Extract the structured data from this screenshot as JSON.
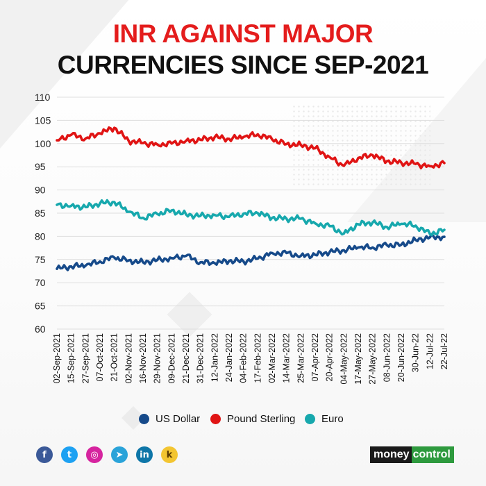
{
  "title_line1": "INR AGAINST MAJOR",
  "title_line2": "CURRENCIES SINCE SEP-2021",
  "colors": {
    "title_accent": "#e41c1c",
    "us_dollar": "#164a8a",
    "pound_sterling": "#e01414",
    "euro": "#17a8ad"
  },
  "chart_data": {
    "type": "line",
    "title": "INR AGAINST MAJOR CURRENCIES SINCE SEP-2021",
    "xlabel": "",
    "ylabel": "",
    "ylim": [
      60,
      110
    ],
    "yticks": [
      110,
      105,
      100,
      95,
      90,
      85,
      80,
      75,
      70,
      65,
      60
    ],
    "grid": true,
    "legend_position": "bottom",
    "x_tick_labels": [
      "02-Sep-2021",
      "15-Sep-2021",
      "27-Sep-2021",
      "07-Oct-2021",
      "21-Oct-2021",
      "02-Nov-2021",
      "16-Nov-2021",
      "29-Nov-2021",
      "09-Dec-2021",
      "21-Dec-2021",
      "31-Dec-2021",
      "12-Jan-2022",
      "24-Jan-2022",
      "04-Feb-2022",
      "17-Feb-2022",
      "02-Mar-2022",
      "14-Mar-2022",
      "25-Mar-2022",
      "07-Apr-2022",
      "20-Apr-2022",
      "04-May-2022",
      "17-May-2022",
      "27-May-2022",
      "08-Jun-2022",
      "20-Jun-2022",
      "30-Jun-22",
      "12-Jul-22",
      "22-Jul-22"
    ],
    "series": [
      {
        "name": "US Dollar",
        "color": "#164a8a",
        "values": [
          73.0,
          73.5,
          73.7,
          74.6,
          75.4,
          74.8,
          74.4,
          74.9,
          75.3,
          75.8,
          74.4,
          74.2,
          74.7,
          74.6,
          75.2,
          76.4,
          76.4,
          75.8,
          76.0,
          76.6,
          77.0,
          77.6,
          77.6,
          78.1,
          78.2,
          79.2,
          79.8,
          79.9
        ]
      },
      {
        "name": "Pound Sterling",
        "color": "#e01414",
        "values": [
          100.7,
          101.9,
          101.1,
          102.2,
          103.4,
          100.6,
          100.1,
          99.8,
          100.0,
          100.6,
          100.8,
          101.4,
          101.0,
          101.4,
          102.0,
          100.9,
          99.9,
          99.7,
          99.0,
          97.1,
          95.2,
          96.9,
          97.5,
          96.2,
          95.9,
          95.6,
          95.1,
          95.8
        ]
      },
      {
        "name": "Euro",
        "color": "#17a8ad",
        "values": [
          86.8,
          86.6,
          86.3,
          87.1,
          87.4,
          85.3,
          84.0,
          84.8,
          85.6,
          84.7,
          84.4,
          84.6,
          84.2,
          84.9,
          85.0,
          84.0,
          83.8,
          83.8,
          82.8,
          82.2,
          80.6,
          82.6,
          83.0,
          82.0,
          82.7,
          82.3,
          80.5,
          81.4
        ]
      }
    ]
  },
  "legend": [
    {
      "label": "US Dollar",
      "color": "#164a8a"
    },
    {
      "label": "Pound Sterling",
      "color": "#e01414"
    },
    {
      "label": "Euro",
      "color": "#17a8ad"
    }
  ],
  "social_icons": [
    {
      "icon": "facebook-icon",
      "glyph": "f",
      "color": "#3b5998"
    },
    {
      "icon": "twitter-icon",
      "glyph": "t",
      "color": "#1da1f2"
    },
    {
      "icon": "instagram-icon",
      "glyph": "◎",
      "color": "#d6249f"
    },
    {
      "icon": "telegram-icon",
      "glyph": "➤",
      "color": "#2aa3d9"
    },
    {
      "icon": "linkedin-icon",
      "glyph": "in",
      "color": "#0e76a8"
    },
    {
      "icon": "koo-icon",
      "glyph": "k",
      "color": "#f3c531"
    }
  ],
  "brand": {
    "part1": "money",
    "part2": "control"
  }
}
